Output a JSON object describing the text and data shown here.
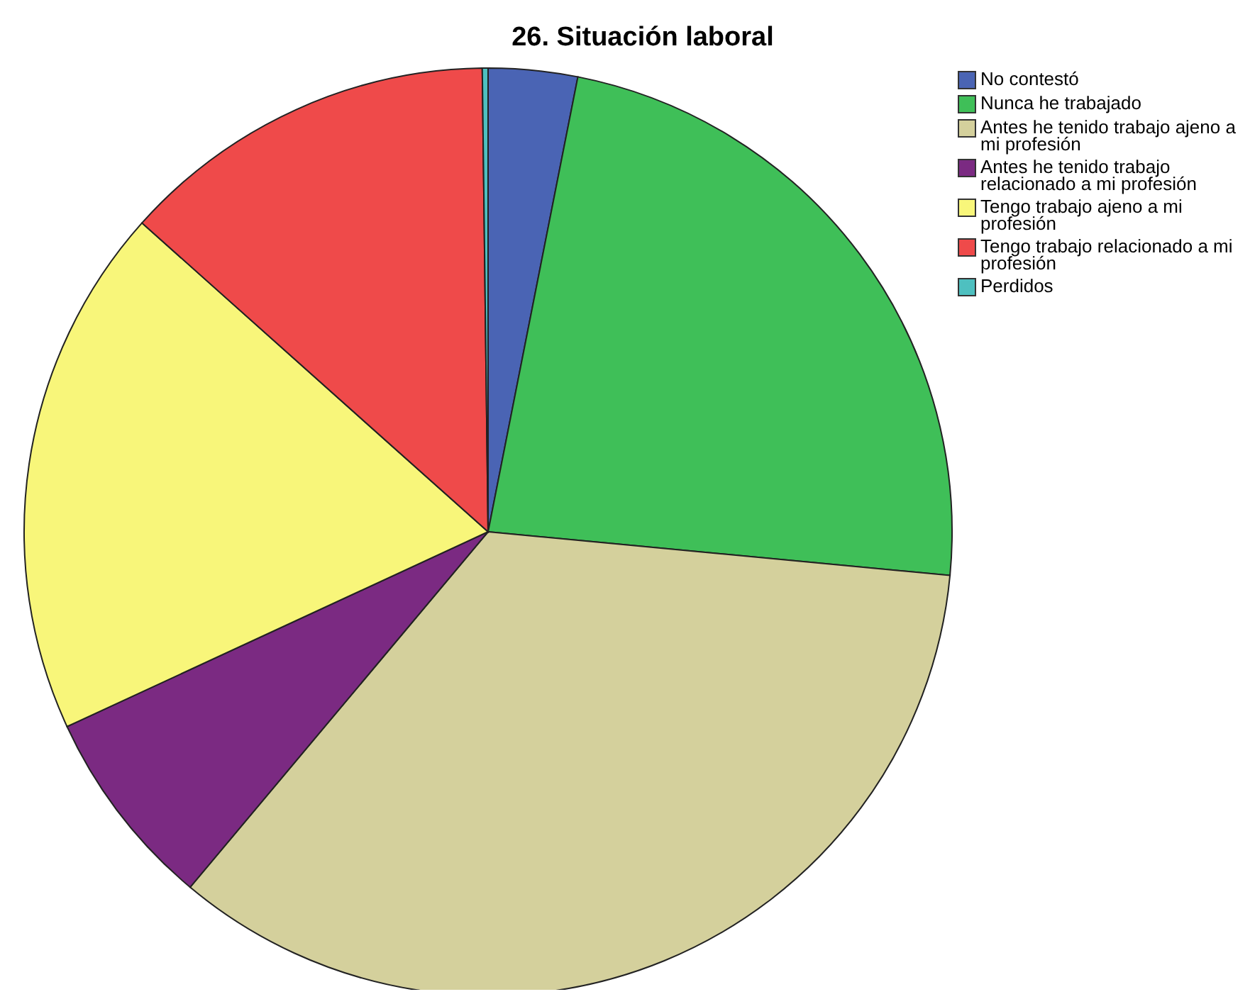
{
  "chart_data": {
    "type": "pie",
    "title": "26. Situación laboral",
    "categories": [
      "No contestó",
      "Nunca he trabajado",
      "Antes he tenido trabajo ajeno a mi profesión",
      "Antes he tenido trabajo relacionado a mi profesión",
      "Tengo trabajo ajeno a mi profesión",
      "Tengo trabajo relacionado a mi profesión",
      "Perdidos"
    ],
    "values": [
      3.1,
      23.4,
      34.6,
      7.0,
      18.5,
      13.2,
      0.2
    ],
    "colors": [
      "#4a64b4",
      "#3fbf58",
      "#d4d09c",
      "#7b2a82",
      "#f8f67a",
      "#ef4a4a",
      "#4ec0c0"
    ],
    "legend": "top right"
  }
}
